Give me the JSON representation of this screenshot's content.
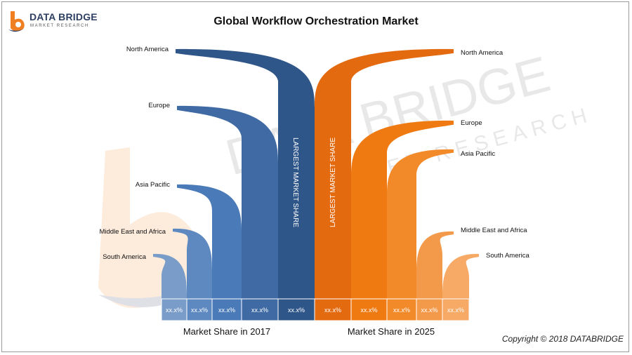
{
  "logo": {
    "name": "DATA BRIDGE",
    "tagline": "MARKET RESEARCH"
  },
  "watermark": {
    "name": "DATA BRIDGE",
    "tagline": "MARKET RESEARCH"
  },
  "copyright": "Copyright © 2018 DATABRIDGE",
  "colors": {
    "series_2017": "#3f6fac",
    "series_2025": "#f07f22"
  },
  "chart_data": {
    "type": "bar",
    "title": "Global Workflow Orchestration Market",
    "largest_label": "LARGEST MARKET SHARE",
    "series": [
      {
        "name": "Market Share in 2017",
        "categories": [
          "South America",
          "Middle East and Africa",
          "Asia Pacific",
          "Europe",
          "North America"
        ],
        "values": [
          "xx.x%",
          "xx.x%",
          "xx.x%",
          "xx.x%",
          "xx.x%"
        ],
        "colors": [
          "#7a9cc9",
          "#5d88c0",
          "#4a7ab8",
          "#3f6aa4",
          "#2f5689"
        ]
      },
      {
        "name": "Market Share in 2025",
        "categories": [
          "North America",
          "Europe",
          "Asia Pacific",
          "Middle East and Africa",
          "South America"
        ],
        "values": [
          "xx.x%",
          "xx.x%",
          "xx.x%",
          "xx.x%",
          "xx.x%"
        ],
        "colors": [
          "#e46a10",
          "#ef7a12",
          "#f28a2a",
          "#f39a4a",
          "#f6aa65"
        ]
      }
    ]
  }
}
